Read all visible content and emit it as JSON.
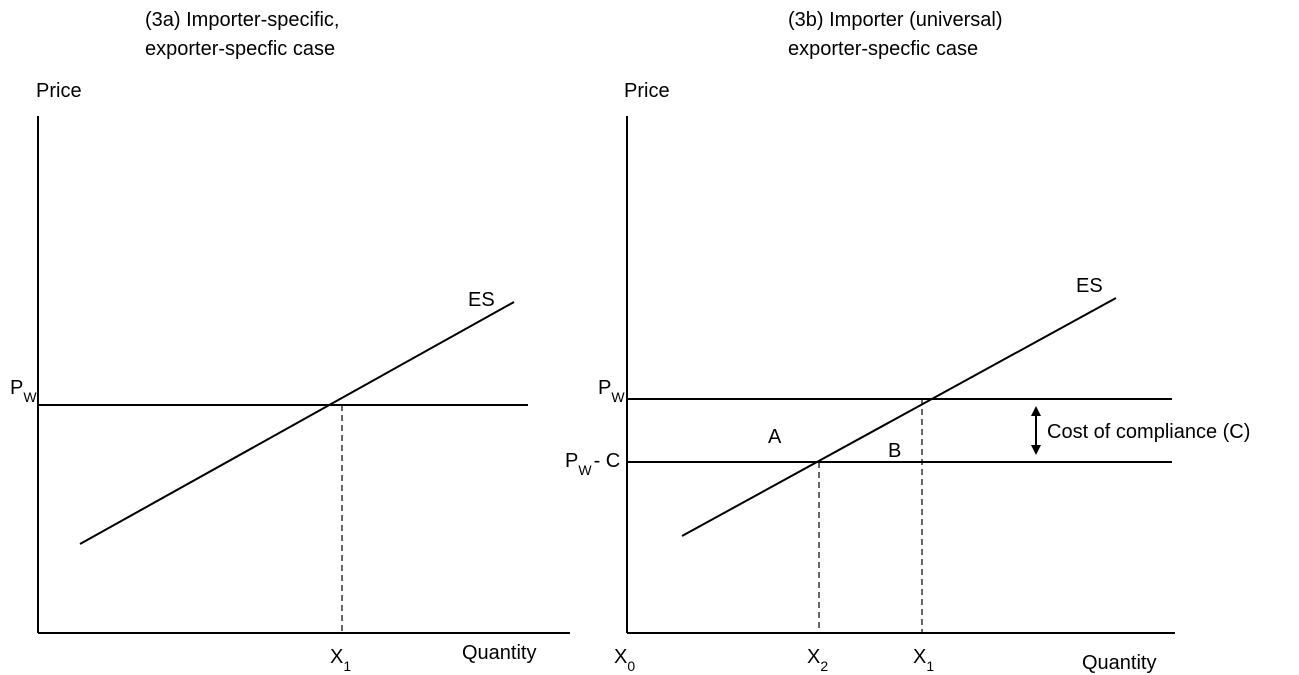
{
  "panel_a": {
    "title_line1": "(3a) Importer-specific,",
    "title_line2": "exporter-specfic case",
    "y_axis_label": "Price",
    "x_axis_label": "Quantity",
    "curve_label": "ES",
    "price_label_main": "P",
    "price_label_sub": "W",
    "qty_label_main": "X",
    "qty_label_sub": "1"
  },
  "panel_b": {
    "title_line1": "(3b) Importer (universal)",
    "title_line2": "exporter-specfic case",
    "y_axis_label": "Price",
    "x_axis_label": "Quantity",
    "curve_label": "ES",
    "price_label_main": "P",
    "price_label_sub": "W",
    "price2_label_main": "P",
    "price2_label_sub": "W",
    "price2_label_suffix": "- C",
    "origin_main": "X",
    "origin_sub": "0",
    "x2_main": "X",
    "x2_sub": "2",
    "x1_main": "X",
    "x1_sub": "1",
    "area_a": "A",
    "area_b": "B",
    "cost_label": "Cost of compliance (C)"
  }
}
